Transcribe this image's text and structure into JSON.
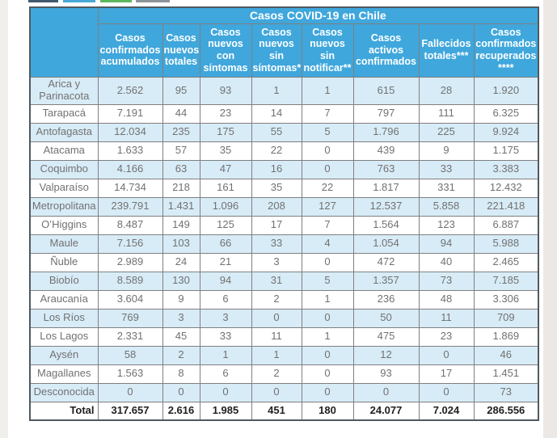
{
  "page": {
    "top_tabs": [
      {
        "name": "tab-navy",
        "color": "#41586f"
      },
      {
        "name": "tab-blue",
        "color": "#47a8d8"
      },
      {
        "name": "tab-green",
        "color": "#5db75d"
      },
      {
        "name": "tab-gray",
        "color": "#8d9499"
      }
    ],
    "colors": {
      "header_bg": "#3fa7dc",
      "header_text": "#ffffff",
      "row_alt_bg": "#d8ecf7",
      "row_bg": "#ffffff",
      "cell_text": "#717171",
      "border": "#7f7f7f"
    }
  },
  "table": {
    "title": "Casos COVID-19 en Chile",
    "columns": [
      "Casos confirmados acumulados",
      "Casos nuevos totales",
      "Casos nuevos con síntomas",
      "Casos nuevos sin síntomas*",
      "Casos nuevos sin notificar**",
      "Casos activos confirmados",
      "Fallecidos totales***",
      "Casos confirmados recuperados ****"
    ],
    "rows": [
      {
        "region": "Arica y Parinacota",
        "values": [
          "2.562",
          "95",
          "93",
          "1",
          "1",
          "615",
          "28",
          "1.920"
        ]
      },
      {
        "region": "Tarapacá",
        "values": [
          "7.191",
          "44",
          "23",
          "14",
          "7",
          "797",
          "111",
          "6.325"
        ]
      },
      {
        "region": "Antofagasta",
        "values": [
          "12.034",
          "235",
          "175",
          "55",
          "5",
          "1.796",
          "225",
          "9.924"
        ]
      },
      {
        "region": "Atacama",
        "values": [
          "1.633",
          "57",
          "35",
          "22",
          "0",
          "439",
          "9",
          "1.175"
        ]
      },
      {
        "region": "Coquimbo",
        "values": [
          "4.166",
          "63",
          "47",
          "16",
          "0",
          "763",
          "33",
          "3.383"
        ]
      },
      {
        "region": "Valparaíso",
        "values": [
          "14.734",
          "218",
          "161",
          "35",
          "22",
          "1.817",
          "331",
          "12.432"
        ]
      },
      {
        "region": "Metropolitana",
        "values": [
          "239.791",
          "1.431",
          "1.096",
          "208",
          "127",
          "12.537",
          "5.858",
          "221.418"
        ]
      },
      {
        "region": "O’Higgins",
        "values": [
          "8.487",
          "149",
          "125",
          "17",
          "7",
          "1.564",
          "123",
          "6.887"
        ]
      },
      {
        "region": "Maule",
        "values": [
          "7.156",
          "103",
          "66",
          "33",
          "4",
          "1.054",
          "94",
          "5.988"
        ]
      },
      {
        "region": "Ñuble",
        "values": [
          "2.989",
          "24",
          "21",
          "3",
          "0",
          "472",
          "40",
          "2.465"
        ]
      },
      {
        "region": "Biobío",
        "values": [
          "8.589",
          "130",
          "94",
          "31",
          "5",
          "1.357",
          "73",
          "7.185"
        ]
      },
      {
        "region": "Araucanía",
        "values": [
          "3.604",
          "9",
          "6",
          "2",
          "1",
          "236",
          "48",
          "3.306"
        ]
      },
      {
        "region": "Los Ríos",
        "values": [
          "769",
          "3",
          "3",
          "0",
          "0",
          "50",
          "11",
          "709"
        ]
      },
      {
        "region": "Los Lagos",
        "values": [
          "2.331",
          "45",
          "33",
          "11",
          "1",
          "475",
          "23",
          "1.869"
        ]
      },
      {
        "region": "Aysén",
        "values": [
          "58",
          "2",
          "1",
          "1",
          "0",
          "12",
          "0",
          "46"
        ]
      },
      {
        "region": "Magallanes",
        "values": [
          "1.563",
          "8",
          "6",
          "2",
          "0",
          "93",
          "17",
          "1.451"
        ]
      },
      {
        "region": "Desconocida",
        "values": [
          "0",
          "0",
          "0",
          "0",
          "0",
          "0",
          "0",
          "73"
        ]
      }
    ],
    "total": {
      "label": "Total",
      "values": [
        "317.657",
        "2.616",
        "1.985",
        "451",
        "180",
        "24.077",
        "7.024",
        "286.556"
      ]
    }
  }
}
